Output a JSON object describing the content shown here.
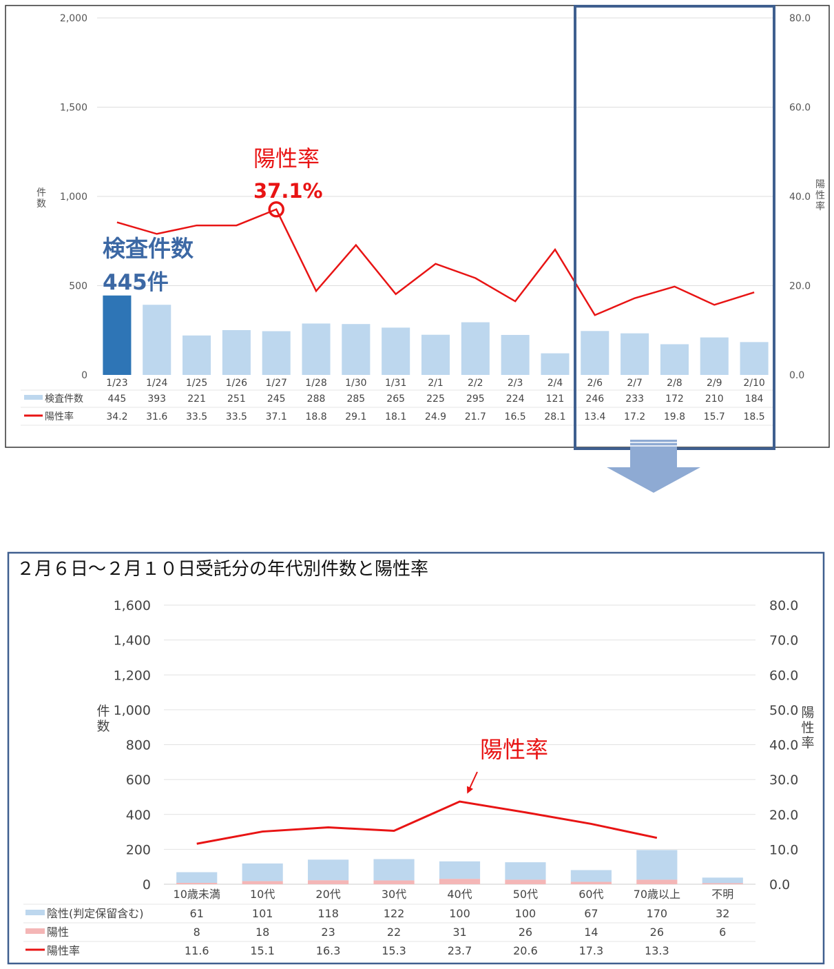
{
  "chart_data": [
    {
      "type": "bar",
      "title": "",
      "y_axis_label": "件数",
      "y2_axis_label": "陽性率",
      "ylim": [
        0,
        2000
      ],
      "y_ticks": [
        "0",
        "500",
        "1,000",
        "1,500",
        "2,000"
      ],
      "y2lim": [
        0,
        80
      ],
      "y2_ticks": [
        "0.0",
        "20.0",
        "40.0",
        "60.0",
        "80.0"
      ],
      "grid": true,
      "categories": [
        "1/23",
        "1/24",
        "1/25",
        "1/26",
        "1/27",
        "1/28",
        "1/30",
        "1/31",
        "2/1",
        "2/2",
        "2/3",
        "2/4",
        "2/6",
        "2/7",
        "2/8",
        "2/9",
        "2/10"
      ],
      "series": [
        {
          "name": "検査件数",
          "type": "bar",
          "axis": "left",
          "values": [
            445,
            393,
            221,
            251,
            245,
            288,
            285,
            265,
            225,
            295,
            224,
            121,
            246,
            233,
            172,
            210,
            184
          ],
          "color": "#bdd7ee",
          "highlight_index": 0,
          "highlight_color": "#2e75b6"
        },
        {
          "name": "陽性率",
          "type": "line",
          "axis": "right",
          "values": [
            34.2,
            31.6,
            33.5,
            33.5,
            37.1,
            18.8,
            29.1,
            18.1,
            24.9,
            21.7,
            16.5,
            28.1,
            13.4,
            17.2,
            19.8,
            15.7,
            18.5
          ],
          "color": "#e81414"
        }
      ],
      "table_values": {
        "検査件数": [
          "445",
          "393",
          "221",
          "251",
          "245",
          "288",
          "285",
          "265",
          "225",
          "295",
          "224",
          "121",
          "246",
          "233",
          "172",
          "210",
          "184"
        ],
        "陽性率": [
          "34.2",
          "31.6",
          "33.5",
          "33.5",
          "37.1",
          "18.8",
          "29.1",
          "18.1",
          "24.9",
          "21.7",
          "16.5",
          "28.1",
          "13.4",
          "17.2",
          "19.8",
          "15.7",
          "18.5"
        ]
      },
      "annotations": {
        "rate_label": "陽性率",
        "rate_value": "37.1%",
        "count_label": "検査件数",
        "count_value": "445件"
      },
      "highlight_box_range": [
        "2/6",
        "2/10"
      ]
    },
    {
      "type": "bar",
      "stacked": true,
      "title": "２月６日～２月１０日受託分の年代別件数と陽性率",
      "y_axis_label": "件数",
      "y2_axis_label": "陽性率",
      "ylim": [
        0,
        1600
      ],
      "y_ticks": [
        "0",
        "200",
        "400",
        "600",
        "800",
        "1,000",
        "1,200",
        "1,400",
        "1,600"
      ],
      "y2lim": [
        0,
        80
      ],
      "y2_ticks": [
        "0.0",
        "10.0",
        "20.0",
        "30.0",
        "40.0",
        "50.0",
        "60.0",
        "70.0",
        "80.0"
      ],
      "grid": true,
      "categories": [
        "10歳未満",
        "10代",
        "20代",
        "30代",
        "40代",
        "50代",
        "60代",
        "70歳以上",
        "不明"
      ],
      "series": [
        {
          "name": "陰性(判定保留含む)",
          "type": "bar",
          "axis": "left",
          "values": [
            61,
            101,
            118,
            122,
            100,
            100,
            67,
            170,
            32
          ],
          "color": "#bdd7ee"
        },
        {
          "name": "陽性",
          "type": "bar",
          "axis": "left",
          "values": [
            8,
            18,
            23,
            22,
            31,
            26,
            14,
            26,
            6
          ],
          "color": "#f4b6b6"
        },
        {
          "name": "陽性率",
          "type": "line",
          "axis": "right",
          "values": [
            11.6,
            15.1,
            16.3,
            15.3,
            23.7,
            20.6,
            17.3,
            13.3,
            null
          ],
          "color": "#e81414"
        }
      ],
      "table_values": {
        "陰性(判定保留含む)": [
          "61",
          "101",
          "118",
          "122",
          "100",
          "100",
          "67",
          "170",
          "32"
        ],
        "陽性": [
          "8",
          "18",
          "23",
          "22",
          "31",
          "26",
          "14",
          "26",
          "6"
        ],
        "陽性率": [
          "11.6",
          "15.1",
          "16.3",
          "15.3",
          "23.7",
          "20.6",
          "17.3",
          "13.3",
          ""
        ]
      },
      "annotations": {
        "rate_label": "陽性率"
      }
    }
  ]
}
